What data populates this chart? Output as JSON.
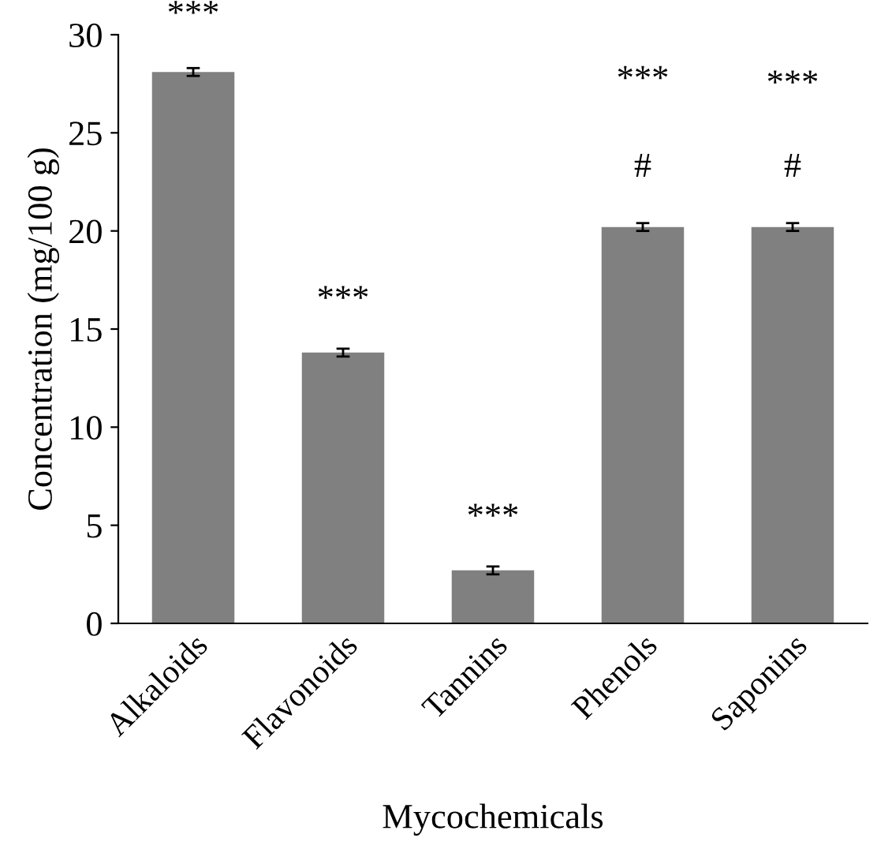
{
  "chart_data": {
    "type": "bar",
    "xlabel": "Mycochemicals",
    "ylabel": "Concentration (mg/100 g)",
    "categories": [
      "Alkaloids",
      "Flavonoids",
      "Tannins",
      "Phenols",
      "Saponins"
    ],
    "values": [
      28.1,
      13.8,
      2.7,
      20.2,
      20.2
    ],
    "errors": [
      0.2,
      0.2,
      0.2,
      0.2,
      0.2
    ],
    "color": "#808080",
    "ylim": [
      0,
      30
    ],
    "yticks": [
      0,
      5,
      10,
      15,
      20,
      25,
      30
    ],
    "grid": false,
    "legend": false,
    "annotations": [
      "***",
      "***",
      "***",
      "***",
      "***",
      "#",
      "#"
    ]
  }
}
